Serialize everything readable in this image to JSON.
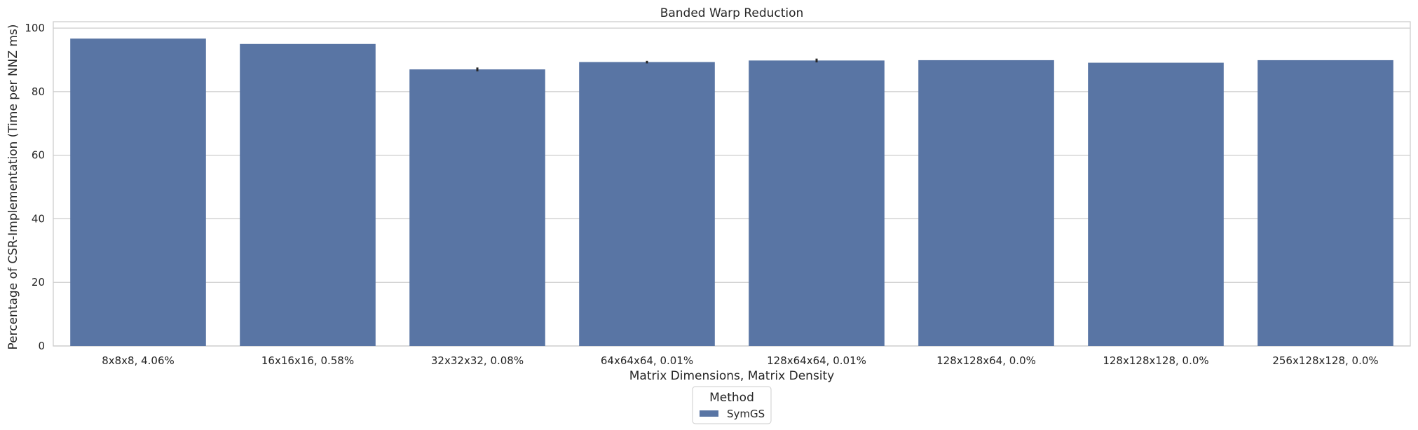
{
  "chart_data": {
    "type": "bar",
    "title": "Banded Warp Reduction",
    "xlabel": "Matrix Dimensions, Matrix Density",
    "ylabel": "Percentage of CSR-Implementation (Time per NNZ ms)",
    "categories": [
      "8x8x8, 4.06%",
      "16x16x16, 0.58%",
      "32x32x32, 0.08%",
      "64x64x64, 0.01%",
      "128x64x64, 0.01%",
      "128x128x64, 0.0%",
      "128x128x128, 0.0%",
      "256x128x128, 0.0%"
    ],
    "series": [
      {
        "name": "SymGS",
        "values": [
          96.7,
          95.0,
          87.0,
          89.3,
          89.8,
          89.9,
          89.1,
          89.9
        ],
        "errors": [
          0,
          0,
          0.6,
          0.4,
          0.6,
          0,
          0,
          0
        ]
      }
    ],
    "ylim": [
      0,
      102
    ],
    "yticks": [
      0,
      20,
      40,
      60,
      80,
      100
    ],
    "grid": true,
    "legend": {
      "title": "Method",
      "placement": "bottom-center"
    },
    "colors": {
      "bar": "#5975a4",
      "grid": "#cccccc",
      "spine": "#cccccc",
      "error": "#262626"
    }
  }
}
